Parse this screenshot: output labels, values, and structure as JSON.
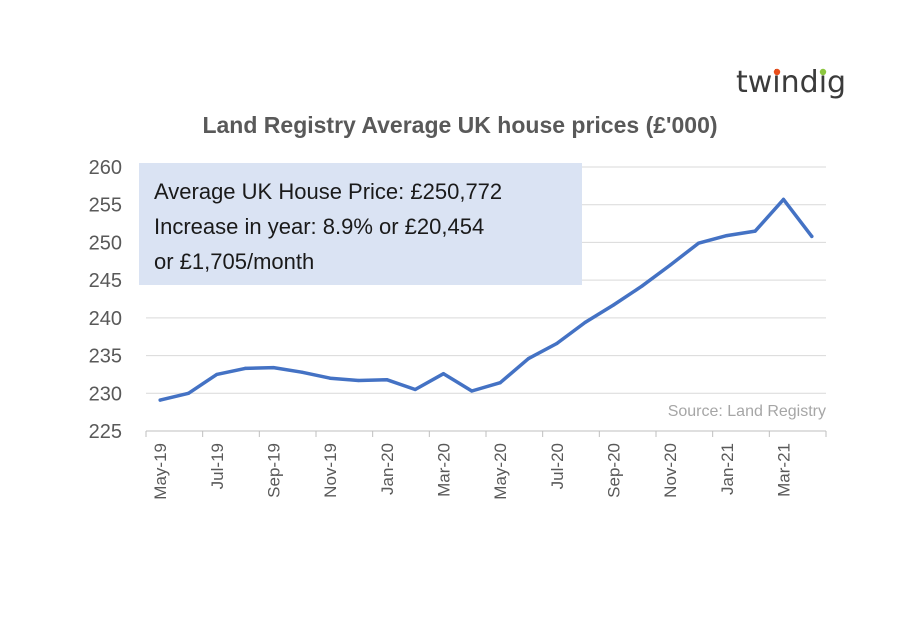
{
  "logo": {
    "text": "twindig",
    "dot_colors": [
      "#e94e1b",
      "#f5a623",
      "#8cc63f",
      "#2e9fd8",
      "#7b4fa0"
    ]
  },
  "chart_data": {
    "type": "line",
    "title": "Land Registry Average UK house prices (£'000)",
    "xlabel": "",
    "ylabel": "",
    "x": [
      "May-19",
      "Jun-19",
      "Jul-19",
      "Aug-19",
      "Sep-19",
      "Oct-19",
      "Nov-19",
      "Dec-19",
      "Jan-20",
      "Feb-20",
      "Mar-20",
      "Apr-20",
      "May-20",
      "Jun-20",
      "Jul-20",
      "Aug-20",
      "Sep-20",
      "Oct-20",
      "Nov-20",
      "Dec-20",
      "Jan-21",
      "Feb-21",
      "Mar-21",
      "Apr-21"
    ],
    "x_tick_labels": [
      "May-19",
      "Jul-19",
      "Sep-19",
      "Nov-19",
      "Jan-20",
      "Mar-20",
      "May-20",
      "Jul-20",
      "Sep-20",
      "Nov-20",
      "Jan-21",
      "Mar-21"
    ],
    "series": [
      {
        "values": [
          229.1,
          230.0,
          232.5,
          233.3,
          233.4,
          232.8,
          232.0,
          231.7,
          231.8,
          230.5,
          232.6,
          230.3,
          231.4,
          234.6,
          236.6,
          239.4,
          241.7,
          244.2,
          247.0,
          249.9,
          250.9,
          251.5,
          255.7,
          250.8
        ],
        "color": "#4472c4"
      }
    ],
    "ylim": [
      225,
      260
    ],
    "y_ticks": [
      225,
      230,
      235,
      240,
      245,
      250,
      255,
      260
    ],
    "grid": true,
    "legend": "none",
    "annotation_box": {
      "lines": [
        "Average UK House Price: £250,772",
        "Increase in year: 8.9% or £20,454",
        "or £1,705/month"
      ],
      "background": "#dae3f3"
    },
    "source": "Source: Land Registry"
  }
}
